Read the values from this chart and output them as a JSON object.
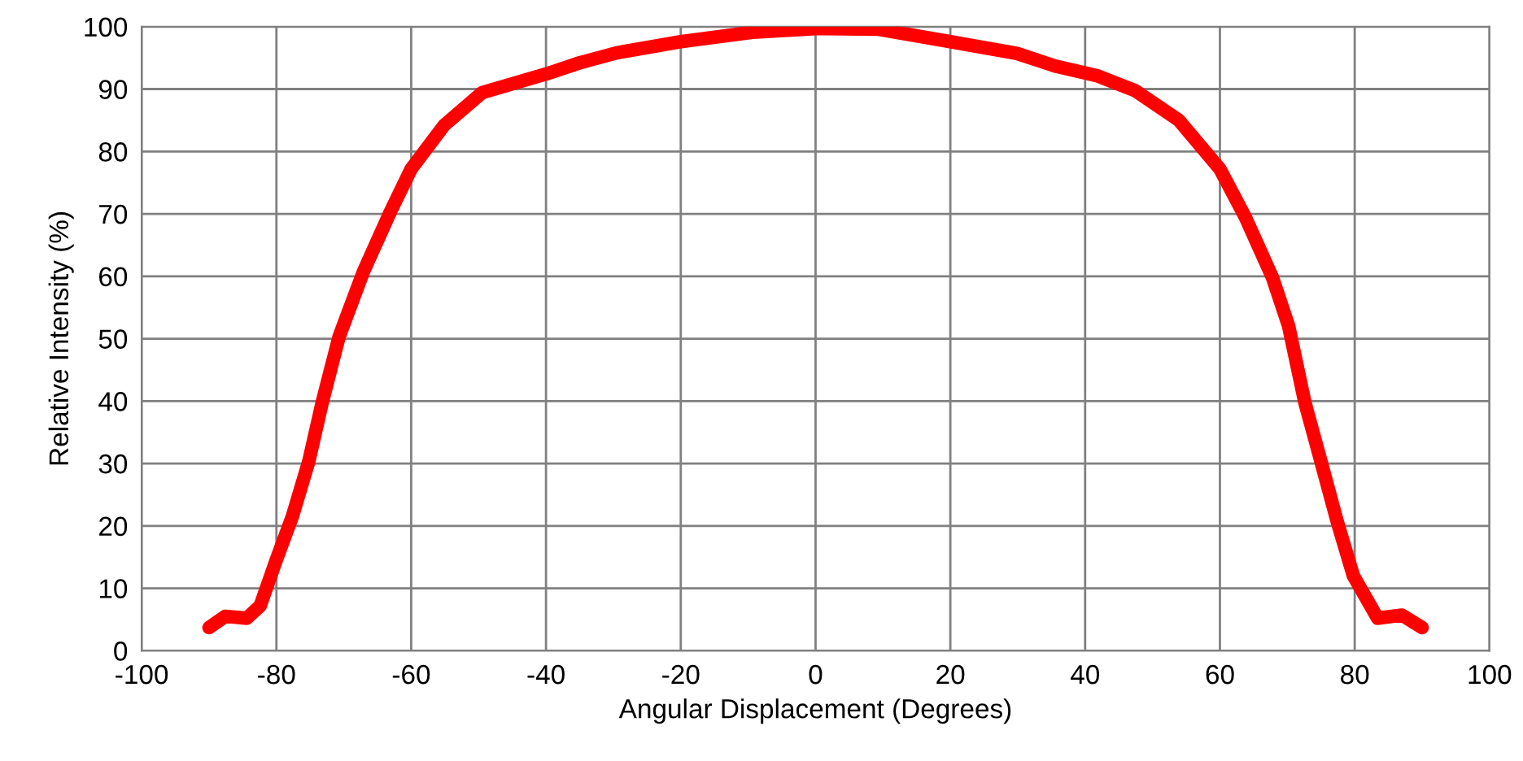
{
  "chart_data": {
    "type": "line",
    "xlabel": "Angular Displacement (Degrees)",
    "ylabel": "Relative Intensity (%)",
    "xlim": [
      -100,
      100
    ],
    "ylim": [
      0,
      100
    ],
    "xticks": [
      -100,
      -80,
      -60,
      -40,
      -20,
      0,
      20,
      40,
      60,
      80,
      100
    ],
    "yticks": [
      0,
      10,
      20,
      30,
      40,
      50,
      60,
      70,
      80,
      90,
      100
    ],
    "grid": true,
    "series": [
      {
        "color": "#ff0000",
        "x": [
          -90,
          -87.6,
          -84.4,
          -82.4,
          -80,
          -77.6,
          -75.2,
          -73.2,
          -70.7,
          -67.1,
          -63.1,
          -60,
          -55.1,
          -49.5,
          -40,
          -35,
          -29.5,
          -20,
          -9.4,
          0,
          9.2,
          20,
          29.9,
          35.5,
          41.9,
          47.5,
          53.9,
          60,
          63.8,
          67.8,
          70.2,
          72.6,
          75,
          77.4,
          79.8,
          83.4,
          87,
          90
        ],
        "values": [
          3.7,
          5.5,
          5.2,
          7.2,
          14.6,
          21.6,
          30.3,
          39.8,
          50.3,
          60.7,
          70.3,
          77.2,
          84.2,
          89.4,
          92.4,
          94.2,
          95.8,
          97.6,
          99.1,
          99.7,
          99.6,
          97.6,
          95.7,
          93.7,
          92.1,
          89.7,
          85,
          77.2,
          69.4,
          59.8,
          52,
          39.8,
          30.3,
          20.7,
          12,
          5.2,
          5.7,
          3.7
        ]
      }
    ]
  }
}
